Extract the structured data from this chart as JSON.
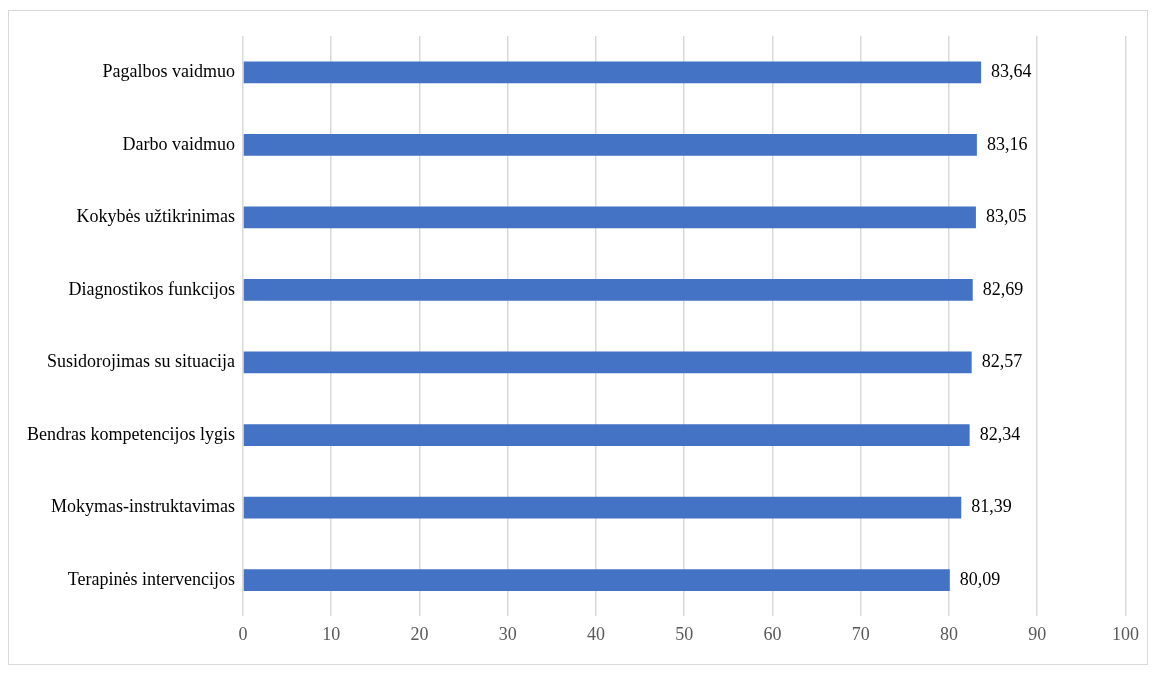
{
  "chart_data": {
    "type": "bar",
    "orientation": "horizontal",
    "categories": [
      "Pagalbos vaidmuo",
      "Darbo vaidmuo",
      "Kokybės užtikrinimas",
      "Diagnostikos funkcijos",
      "Susidorojimas su situacija",
      "Bendras kompetencijos lygis",
      "Mokymas-instruktavimas",
      "Terapinės intervencijos"
    ],
    "values": [
      83.64,
      83.16,
      83.05,
      82.69,
      82.57,
      82.34,
      81.39,
      80.09
    ],
    "value_labels": [
      "83,64",
      "83,16",
      "83,05",
      "82,69",
      "82,57",
      "82,34",
      "81,39",
      "80,09"
    ],
    "color": "#4472c4",
    "xlim": [
      0,
      100
    ],
    "xticks": [
      0,
      10,
      20,
      30,
      40,
      50,
      60,
      70,
      80,
      90,
      100
    ],
    "grid": "x",
    "legend": false
  }
}
